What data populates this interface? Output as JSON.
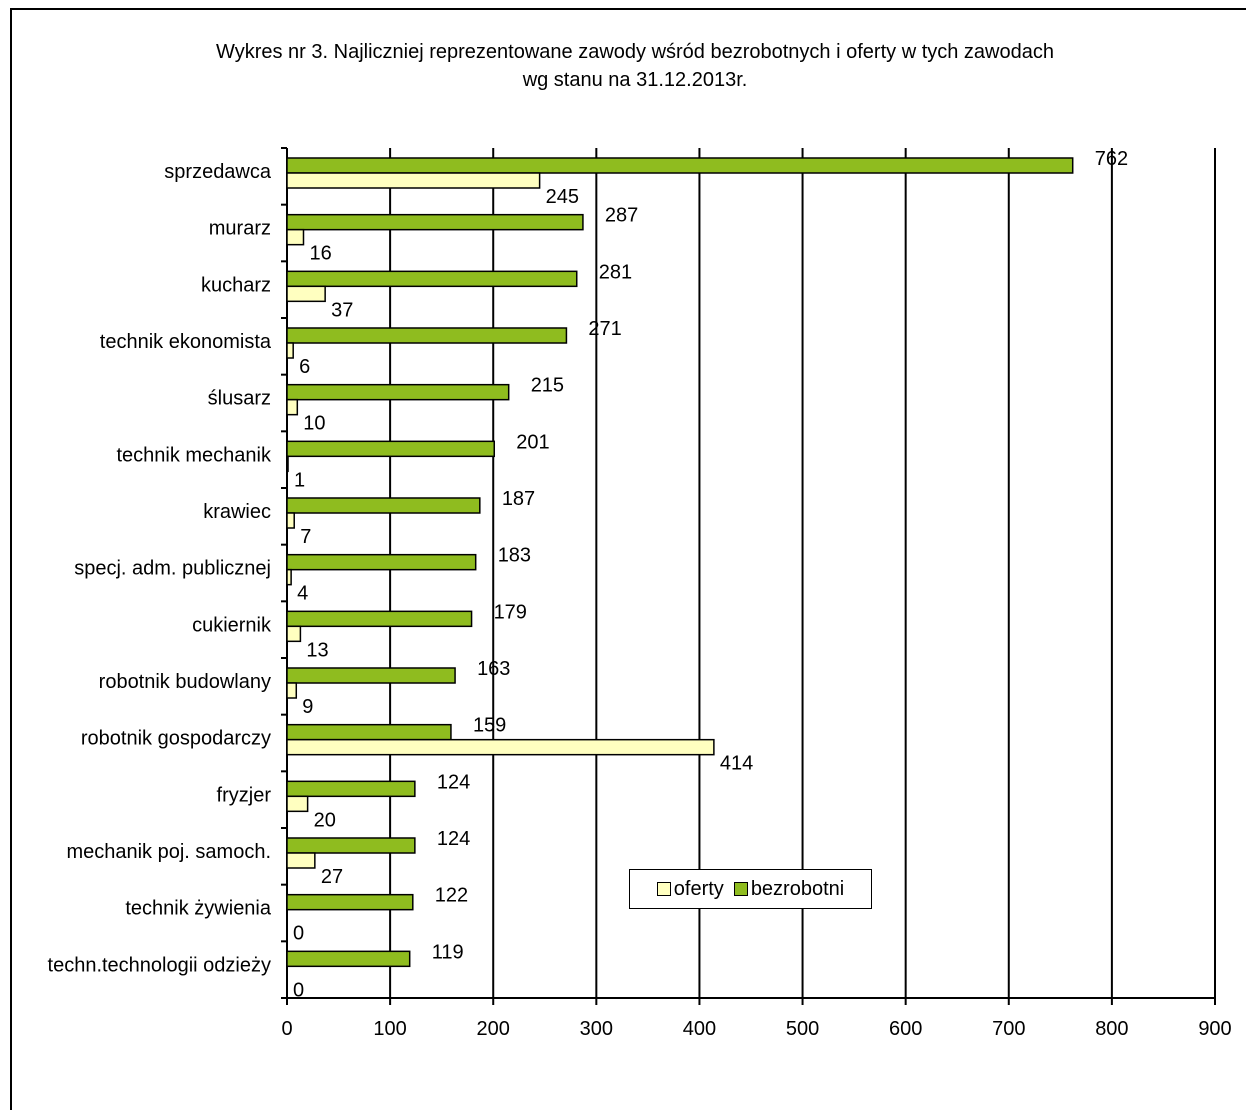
{
  "chart_data": {
    "type": "bar",
    "orientation": "horizontal",
    "title": "Wykres nr 3. Najliczniej reprezentowane zawody wśród bezrobotnych i oferty w tych zawodach",
    "subtitle": "wg stanu na 31.12.2013r.",
    "categories": [
      "sprzedawca",
      "murarz",
      "kucharz",
      "technik ekonomista",
      "ślusarz",
      "technik mechanik",
      "krawiec",
      "specj. adm. publicznej",
      "cukiernik",
      "robotnik budowlany",
      "robotnik gospodarczy",
      "fryzjer",
      "mechanik poj. samoch.",
      "technik żywienia",
      "techn.technologii odzieży"
    ],
    "series": [
      {
        "name": "bezrobotni",
        "color": "#8fbc1f",
        "values": [
          762,
          287,
          281,
          271,
          215,
          201,
          187,
          183,
          179,
          163,
          159,
          124,
          124,
          122,
          119
        ]
      },
      {
        "name": "oferty",
        "color": "#ffffc0",
        "values": [
          245,
          16,
          37,
          6,
          10,
          1,
          7,
          4,
          13,
          9,
          414,
          20,
          27,
          0,
          0
        ]
      }
    ],
    "xlim": [
      0,
      900
    ],
    "xticks": [
      0,
      100,
      200,
      300,
      400,
      500,
      600,
      700,
      800,
      900
    ],
    "grid": true,
    "legend": {
      "position": "bottom",
      "entries": [
        "oferty",
        "bezrobotni"
      ]
    }
  }
}
